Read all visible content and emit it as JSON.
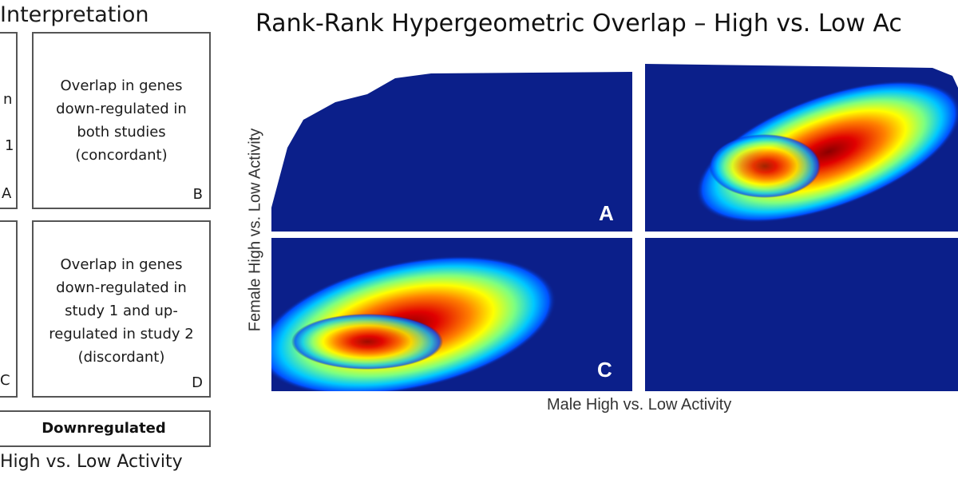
{
  "interpretation": {
    "title": "Interpretation",
    "left_clipped_texts": [
      "n",
      "1",
      "A",
      "C"
    ],
    "boxes": [
      {
        "id": "B",
        "text": [
          "Overlap in genes",
          "down-regulated in",
          "both studies",
          "(concordant)"
        ],
        "letter": "B"
      },
      {
        "id": "D",
        "text": [
          "Overlap in genes",
          "down-regulated in",
          "study 1 and up-",
          "regulated in study 2",
          "(discordant)"
        ],
        "letter": "D"
      }
    ],
    "legend_label": "Downregulated",
    "bottom_label": "High vs. Low Activity"
  },
  "figure": {
    "title": "Rank-Rank Hypergeometric Overlap – High vs. Low Ac",
    "ylabel": "Female High vs. Low Activity",
    "xlabel": "Male High vs. Low Activity",
    "quadrants": [
      {
        "id": "A",
        "label": "A",
        "description": "no overlap",
        "fill": "#0b1f8a"
      },
      {
        "id": "B",
        "label": "",
        "description": "strong overlap hotspot",
        "fill": "#0b1f8a"
      },
      {
        "id": "C",
        "label": "C",
        "description": "strong overlap hotspot",
        "fill": "#0b1f8a"
      },
      {
        "id": "D",
        "label": "",
        "description": "no overlap",
        "fill": "#0b1f8a"
      }
    ],
    "colorscale": [
      "#00008b",
      "#0050ff",
      "#00c8ff",
      "#7fff7f",
      "#ffff00",
      "#ff7f00",
      "#e00000",
      "#800000"
    ]
  }
}
